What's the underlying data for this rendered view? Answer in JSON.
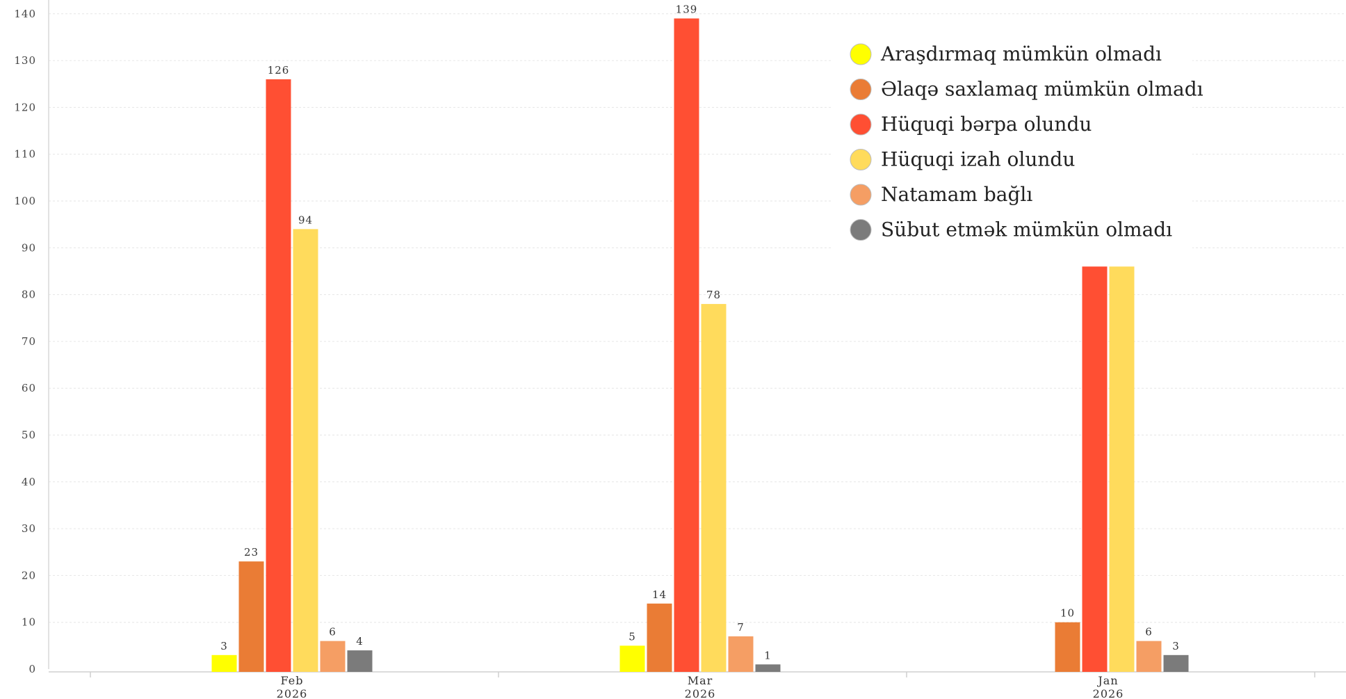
{
  "chart_data": {
    "type": "bar",
    "categories": [
      {
        "label": "Feb",
        "year": "2026"
      },
      {
        "label": "Mar",
        "year": "2026"
      },
      {
        "label": "Jan",
        "year": "2026"
      }
    ],
    "ylim": [
      0,
      140
    ],
    "yticks": [
      0,
      10,
      20,
      30,
      40,
      50,
      60,
      70,
      80,
      90,
      100,
      110,
      120,
      130,
      140
    ],
    "grid": true,
    "legend_position": "top-right",
    "series": [
      {
        "name": "Araşdırmaq mümkün olmadı",
        "color": "#ffff00",
        "values": [
          3,
          5,
          null
        ],
        "labels": [
          "3",
          "5",
          ""
        ]
      },
      {
        "name": "Əlaqə saxlamaq mümkün olmadı",
        "color": "#ea7c35",
        "values": [
          23,
          14,
          10
        ],
        "labels": [
          "23",
          "14",
          "10"
        ]
      },
      {
        "name": "Hüquqi bərpa olundu",
        "color": "#ff4f33",
        "values": [
          126,
          139,
          86
        ],
        "labels": [
          "126",
          "139",
          ""
        ]
      },
      {
        "name": "Hüquqi izah olundu",
        "color": "#ffdb5c",
        "values": [
          94,
          78,
          86
        ],
        "labels": [
          "94",
          "78",
          ""
        ]
      },
      {
        "name": "Natamam bağlı",
        "color": "#f59e64",
        "values": [
          6,
          7,
          6
        ],
        "labels": [
          "6",
          "7",
          "6"
        ]
      },
      {
        "name": "Sübut etmək mümkün olmadı",
        "color": "#7b7b7b",
        "values": [
          4,
          1,
          3
        ],
        "labels": [
          "4",
          "1",
          "3"
        ]
      }
    ]
  }
}
